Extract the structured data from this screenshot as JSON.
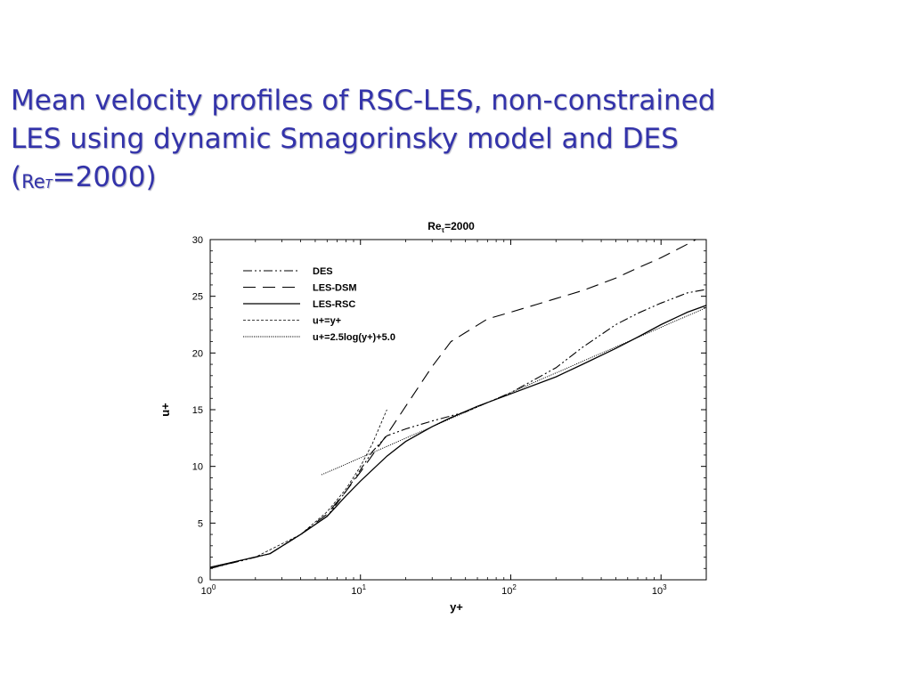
{
  "slide": {
    "title_line1": "Mean velocity profiles of RSC-LES, non-constrained",
    "title_line2": "LES using dynamic Smagorinsky model and DES",
    "title_line3_prefix": "(",
    "title_line3_re": "Re",
    "title_line3_sub": "T",
    "title_line3_rest": "=2000)"
  },
  "chart_data": {
    "type": "line",
    "title": "Reτ=2000",
    "title_main": "Re",
    "title_sub": "τ",
    "title_rest": "=2000",
    "xlabel": "y+",
    "ylabel": "u+",
    "xscale": "log",
    "xlim": [
      1,
      2000
    ],
    "ylim": [
      0,
      30
    ],
    "x_ticks": [
      {
        "value": 1,
        "base": "10",
        "exp": "0"
      },
      {
        "value": 10,
        "base": "10",
        "exp": "1"
      },
      {
        "value": 100,
        "base": "10",
        "exp": "2"
      },
      {
        "value": 1000,
        "base": "10",
        "exp": "3"
      }
    ],
    "y_ticks": [
      0,
      5,
      10,
      15,
      20,
      25,
      30
    ],
    "grid": false,
    "legend_position": "top-left",
    "series": [
      {
        "name": "DES",
        "dash": "dashdotdot",
        "points": [
          [
            1,
            1.0
          ],
          [
            2.5,
            2.3
          ],
          [
            4,
            4.0
          ],
          [
            6,
            5.6
          ],
          [
            8,
            7.8
          ],
          [
            10,
            9.7
          ],
          [
            12,
            11.3
          ],
          [
            15,
            12.7
          ],
          [
            20,
            13.3
          ],
          [
            30,
            14.0
          ],
          [
            50,
            14.8
          ],
          [
            100,
            16.5
          ],
          [
            200,
            18.7
          ],
          [
            300,
            20.5
          ],
          [
            500,
            22.5
          ],
          [
            700,
            23.5
          ],
          [
            1000,
            24.4
          ],
          [
            1500,
            25.3
          ],
          [
            2000,
            25.6
          ]
        ]
      },
      {
        "name": "LES-DSM",
        "dash": "longdash",
        "points": [
          [
            1,
            1.1
          ],
          [
            2.5,
            2.3
          ],
          [
            4,
            4.0
          ],
          [
            6,
            5.8
          ],
          [
            8,
            7.8
          ],
          [
            10,
            9.5
          ],
          [
            15,
            12.8
          ],
          [
            20,
            15.3
          ],
          [
            30,
            18.8
          ],
          [
            40,
            21.0
          ],
          [
            50,
            21.8
          ],
          [
            70,
            23.0
          ],
          [
            100,
            23.6
          ],
          [
            150,
            24.3
          ],
          [
            200,
            24.8
          ],
          [
            300,
            25.5
          ],
          [
            500,
            26.6
          ],
          [
            700,
            27.5
          ],
          [
            1000,
            28.4
          ],
          [
            1500,
            29.6
          ],
          [
            2000,
            30.5
          ]
        ]
      },
      {
        "name": "LES-RSC",
        "dash": "solid",
        "points": [
          [
            1,
            1.1
          ],
          [
            2.5,
            2.3
          ],
          [
            4,
            4.0
          ],
          [
            6,
            5.6
          ],
          [
            8,
            7.4
          ],
          [
            10,
            8.7
          ],
          [
            15,
            10.9
          ],
          [
            20,
            12.2
          ],
          [
            30,
            13.5
          ],
          [
            40,
            14.3
          ],
          [
            60,
            15.3
          ],
          [
            100,
            16.4
          ],
          [
            200,
            17.9
          ],
          [
            300,
            19.0
          ],
          [
            500,
            20.4
          ],
          [
            700,
            21.4
          ],
          [
            1000,
            22.5
          ],
          [
            1500,
            23.6
          ],
          [
            2000,
            24.2
          ]
        ]
      },
      {
        "name": "u+=y+",
        "dash": "dotted",
        "points": [
          [
            1,
            1.0
          ],
          [
            2,
            2.0
          ],
          [
            4,
            4.0
          ],
          [
            6,
            6.0
          ],
          [
            8,
            8.0
          ],
          [
            10,
            10.0
          ],
          [
            12,
            12.0
          ],
          [
            15,
            15.0
          ]
        ]
      },
      {
        "name": "u+=2.5log(y+)+5.0",
        "dash": "densedot",
        "points": [
          [
            5.5,
            9.26
          ],
          [
            2000,
            24.0
          ]
        ]
      }
    ]
  }
}
